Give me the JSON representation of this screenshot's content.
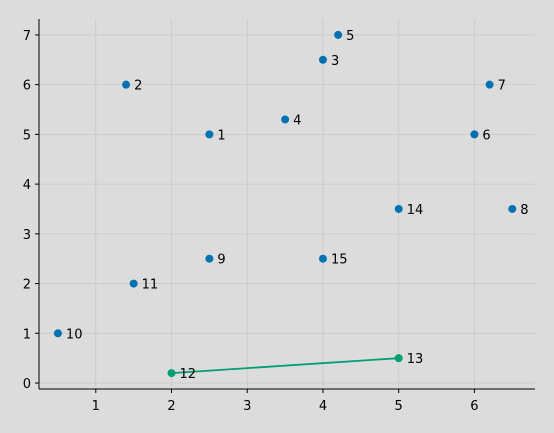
{
  "chart_data": {
    "type": "scatter",
    "title": "",
    "xlabel": "",
    "ylabel": "",
    "xlim": [
      0.25,
      6.8
    ],
    "ylim": [
      -0.12,
      7.32
    ],
    "xticks": [
      1,
      2,
      3,
      4,
      5,
      6
    ],
    "yticks": [
      0,
      1,
      2,
      3,
      4,
      5,
      6,
      7
    ],
    "grid": true,
    "background": "#dcdcdc",
    "point_color": "#0072b2",
    "highlight_color": "#009e73",
    "points": [
      {
        "label": "1",
        "x": 2.5,
        "y": 5.0
      },
      {
        "label": "2",
        "x": 1.4,
        "y": 6.0
      },
      {
        "label": "3",
        "x": 4.0,
        "y": 6.5
      },
      {
        "label": "4",
        "x": 3.5,
        "y": 5.3
      },
      {
        "label": "5",
        "x": 4.2,
        "y": 7.0
      },
      {
        "label": "6",
        "x": 6.0,
        "y": 5.0
      },
      {
        "label": "7",
        "x": 6.2,
        "y": 6.0
      },
      {
        "label": "8",
        "x": 6.5,
        "y": 3.5
      },
      {
        "label": "9",
        "x": 2.5,
        "y": 2.5
      },
      {
        "label": "10",
        "x": 0.5,
        "y": 1.0
      },
      {
        "label": "11",
        "x": 1.5,
        "y": 2.0
      },
      {
        "label": "12",
        "x": 2.0,
        "y": 0.2,
        "highlight": true
      },
      {
        "label": "13",
        "x": 5.0,
        "y": 0.5,
        "highlight": true
      },
      {
        "label": "14",
        "x": 5.0,
        "y": 3.5
      },
      {
        "label": "15",
        "x": 4.0,
        "y": 2.5
      }
    ],
    "edges": [
      {
        "from": "12",
        "to": "13"
      }
    ]
  }
}
